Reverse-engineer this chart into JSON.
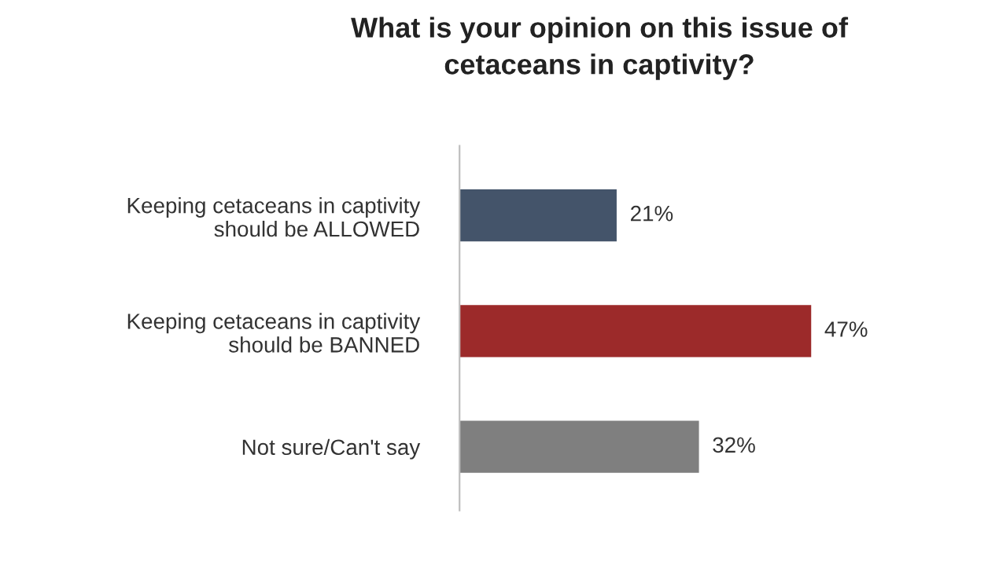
{
  "chart_data": {
    "type": "bar",
    "orientation": "horizontal",
    "title": "What is your opinion on this issue of\ncetaceans in captivity?",
    "categories": [
      "Keeping cetaceans in captivity\nshould be ALLOWED",
      "Keeping cetaceans in captivity\nshould be BANNED",
      "Not sure/Can't say"
    ],
    "values": [
      21,
      47,
      32
    ],
    "colors": [
      "#44546a",
      "#9c2a2a",
      "#7f7f7f"
    ],
    "value_labels": [
      "21%",
      "47%",
      "32%"
    ],
    "grid": false,
    "legend": false
  }
}
